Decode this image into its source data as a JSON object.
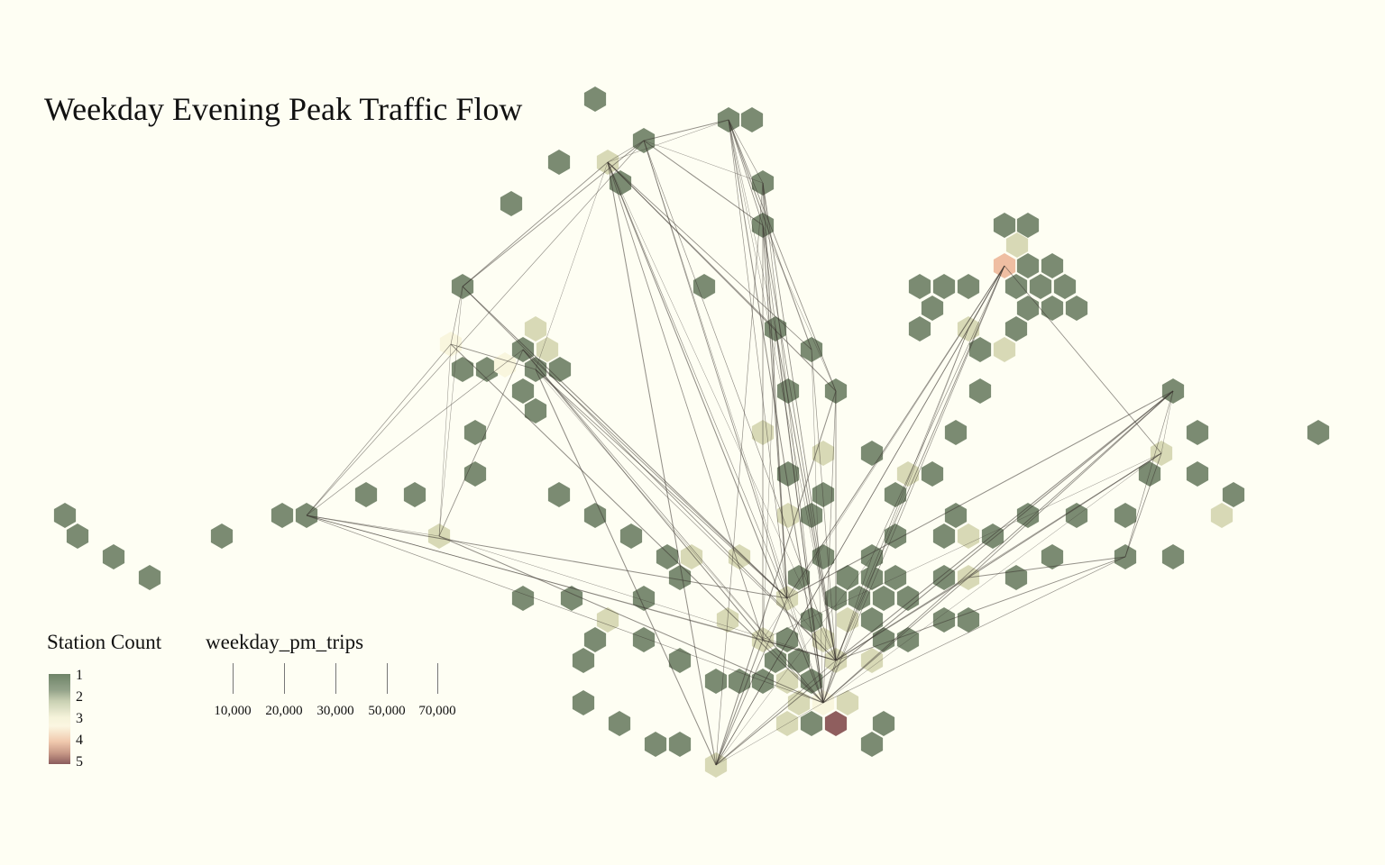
{
  "title": "Weekday Evening Peak Traffic Flow",
  "legend": {
    "station_count": {
      "title": "Station Count",
      "ticks": [
        "1",
        "2",
        "3",
        "4",
        "5"
      ],
      "colors": [
        "#7b8b72",
        "#c6cda8",
        "#fbf8e0",
        "#efc0a2",
        "#8f5e5e"
      ]
    },
    "flow": {
      "title": "weekday_pm_trips",
      "ticks": [
        "10,000",
        "20,000",
        "30,000",
        "50,000",
        "70,000"
      ]
    }
  },
  "colors": {
    "background": "#fefef3",
    "count_1": "#7b8b72",
    "count_2": "#d8d9b6",
    "count_3": "#f9f6de",
    "count_4": "#efbea2",
    "count_5": "#8f5e5e",
    "flow_line": "#3a3530"
  }
}
